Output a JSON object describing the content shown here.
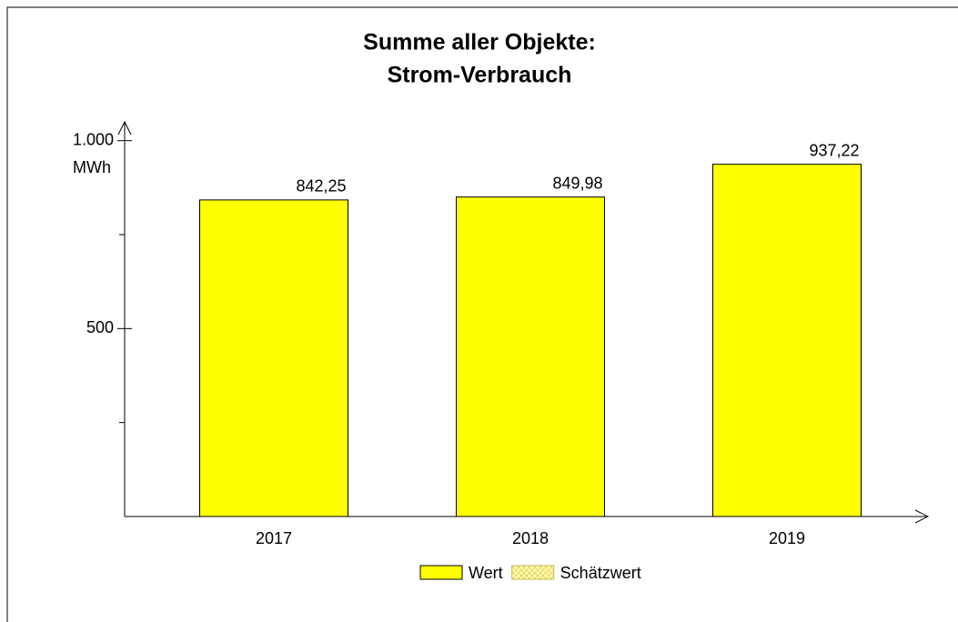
{
  "chart_data": {
    "type": "bar",
    "title": [
      "Summe aller Objekte:",
      "Strom-Verbrauch"
    ],
    "y_unit": "MWh",
    "categories": [
      "2017",
      "2018",
      "2019"
    ],
    "series": [
      {
        "name": "Wert",
        "color": "#ffff00",
        "values": [
          842.25,
          849.98,
          937.22
        ],
        "value_labels": [
          "842,25",
          "849,98",
          "937,22"
        ]
      },
      {
        "name": "Schätzwert",
        "color": "#ffffb0",
        "pattern": "crosshatch",
        "values": [
          null,
          null,
          null
        ]
      }
    ],
    "ylim": [
      0,
      1050
    ],
    "yticks": [
      500,
      {
        "value": 1000,
        "label": "1.000"
      }
    ],
    "minor_yticks": [
      250,
      750
    ],
    "legend": "bottom"
  }
}
